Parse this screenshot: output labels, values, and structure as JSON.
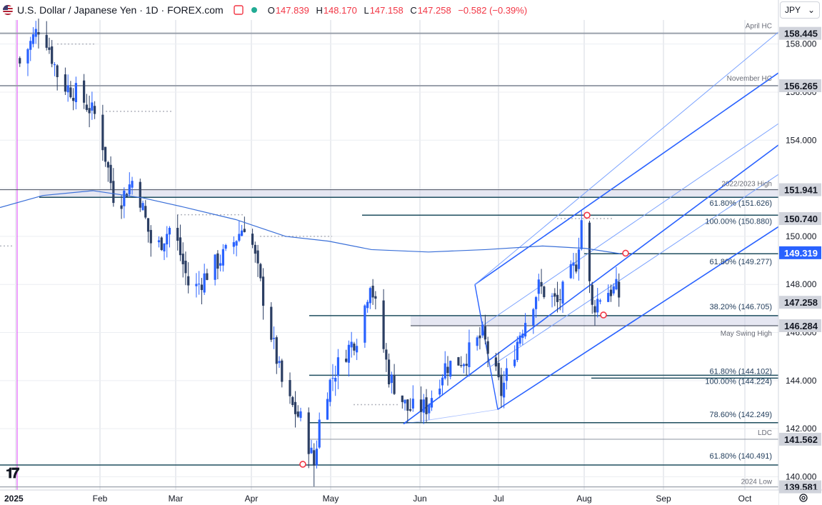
{
  "header": {
    "title": "U.S. Dollar / Japanese Yen · 1D · FOREX.com",
    "open_label": "O",
    "open": "147.839",
    "high_label": "H",
    "high": "148.170",
    "low_label": "L",
    "low": "147.158",
    "close_label": "C",
    "close": "147.258",
    "change": "−0.582 (−0.39%)",
    "currency": "JPY"
  },
  "chart_data": {
    "type": "candlestick",
    "ylim": [
      139.45,
      159.0
    ],
    "x_axis_labels": [
      "2025",
      "Feb",
      "Mar",
      "Apr",
      "May",
      "Jun",
      "Jul",
      "Aug",
      "Sep",
      "Oct"
    ],
    "y_ticks": [
      "140.000",
      "142.000",
      "144.000",
      "146.000",
      "148.000",
      "150.000",
      "152.000",
      "154.000",
      "156.000",
      "158.000"
    ],
    "price_badges": [
      {
        "value": "158.445",
        "type": "grey"
      },
      {
        "value": "156.265",
        "type": "grey"
      },
      {
        "value": "151.941",
        "type": "grey"
      },
      {
        "value": "150.740",
        "type": "grey"
      },
      {
        "value": "149.319",
        "type": "blue"
      },
      {
        "value": "147.258",
        "type": "grey"
      },
      {
        "value": "146.284",
        "type": "grey"
      },
      {
        "value": "141.562",
        "type": "grey"
      },
      {
        "value": "139.581",
        "type": "grey"
      }
    ],
    "level_labels": [
      {
        "text": "April HC",
        "y": 158.445
      },
      {
        "text": "November HC",
        "y": 156.265
      },
      {
        "text": "2022/2023 High",
        "y": 151.941
      },
      {
        "text": "61.80% (151.626)",
        "y": 151.626
      },
      {
        "text": "100.00% (150.880)",
        "y": 150.88
      },
      {
        "text": "61.80% (149.277)",
        "y": 149.277
      },
      {
        "text": "38.20% (146.705)",
        "y": 146.705
      },
      {
        "text": "May Swing High",
        "y": 146.284
      },
      {
        "text": "61.80% (144.102)",
        "y": 144.102
      },
      {
        "text": "100.00% (144.224)",
        "y": 144.224
      },
      {
        "text": "78.60% (142.249)",
        "y": 142.249
      },
      {
        "text": "LDC",
        "y": 141.562
      },
      {
        "text": "61.80% (140.491)",
        "y": 140.491
      },
      {
        "text": "2024 Low",
        "y": 139.581
      }
    ],
    "anchor_high": 159.2,
    "anchor_low": 139.6,
    "last_close": 147.258,
    "colors": {
      "up": "#2962ff",
      "down": "#2b3e63",
      "ma": "#3a6fd8",
      "channel": "#2962ff",
      "level": "#1f4e5f",
      "band": "#d1d4e8"
    }
  }
}
